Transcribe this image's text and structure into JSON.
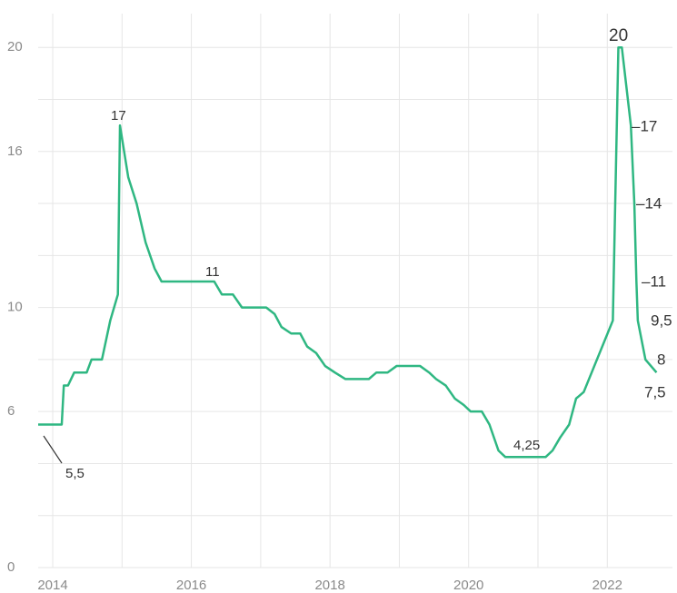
{
  "chart_data": {
    "type": "line",
    "x": [
      2013.79,
      2014.13,
      2014.16,
      2014.22,
      2014.31,
      2014.49,
      2014.56,
      2014.71,
      2014.83,
      2014.94,
      2014.97,
      2015.09,
      2015.21,
      2015.34,
      2015.47,
      2015.57,
      2016.33,
      2016.44,
      2016.6,
      2016.73,
      2017.08,
      2017.2,
      2017.3,
      2017.44,
      2017.57,
      2017.67,
      2017.8,
      2017.93,
      2018.07,
      2018.22,
      2018.56,
      2018.67,
      2018.83,
      2018.96,
      2019.3,
      2019.43,
      2019.53,
      2019.67,
      2019.8,
      2019.93,
      2020.03,
      2020.19,
      2020.3,
      2020.43,
      2020.53,
      2021.11,
      2021.21,
      2021.32,
      2021.45,
      2021.55,
      2021.66,
      2022.08,
      2022.16,
      2022.21,
      2022.34,
      2022.39,
      2022.42,
      2022.44,
      2022.55,
      2022.71
    ],
    "series": [
      {
        "color": "#2fb782",
        "values": [
          5.5,
          5.5,
          7,
          7,
          7.5,
          7.5,
          8,
          8,
          9.5,
          10.5,
          17,
          15,
          14,
          12.5,
          11.5,
          11,
          11,
          10.5,
          10.5,
          10,
          10,
          9.75,
          9.25,
          9,
          9,
          8.5,
          8.25,
          7.75,
          7.5,
          7.25,
          7.25,
          7.5,
          7.5,
          7.75,
          7.75,
          7.5,
          7.25,
          7,
          6.5,
          6.25,
          6,
          6,
          5.5,
          4.5,
          4.25,
          4.25,
          4.5,
          5,
          5.5,
          6.5,
          6.75,
          9.5,
          20,
          20,
          17,
          14,
          11,
          9.5,
          8,
          7.5
        ]
      }
    ],
    "xlim": [
      2013.79,
      2022.94
    ],
    "xticks": [
      2014,
      2016,
      2018,
      2020,
      2022
    ],
    "xgrid": [
      2014,
      2015,
      2016,
      2017,
      2018,
      2019,
      2020,
      2021,
      2022
    ],
    "ylim": [
      0,
      21.3
    ],
    "yticks": [
      0,
      6,
      10,
      16,
      20
    ],
    "ygrid": [
      0,
      2,
      4,
      6,
      8,
      10,
      12,
      14,
      16,
      18,
      20
    ],
    "grid": true,
    "annotations": [
      "5,5",
      "17",
      "11",
      "4,25",
      "20",
      "–17",
      "–14",
      "–11",
      "9,5",
      "8",
      "7,5"
    ]
  }
}
